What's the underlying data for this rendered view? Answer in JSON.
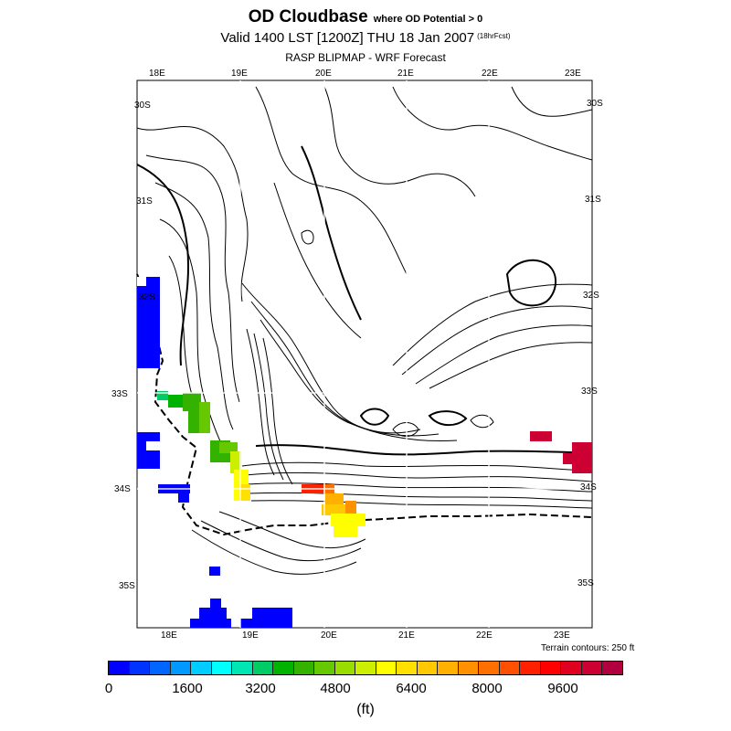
{
  "header": {
    "title": "OD Cloudbase",
    "title_note": "where OD Potential > 0",
    "subtitle": "Valid 1400 LST [1200Z] THU 18 Jan 2007",
    "subtitle_note": "(18hrFcst)",
    "source": "RASP BLIPMAP - WRF Forecast"
  },
  "map": {
    "lon_labels_top": [
      "18E",
      "19E",
      "20E",
      "21E",
      "22E",
      "23E"
    ],
    "lon_labels_bottom": [
      "18E",
      "19E",
      "20E",
      "21E",
      "22E",
      "23E"
    ],
    "lat_labels_left": [
      "30S",
      "31S",
      "32S",
      "33S",
      "34S",
      "35S"
    ],
    "lat_labels_right": [
      "30S",
      "31S",
      "32S",
      "33S",
      "34S",
      "35S"
    ],
    "terrain_note": "Terrain contours: 250 ft"
  },
  "colorbar": {
    "labels": [
      "0",
      "1600",
      "3200",
      "4800",
      "6400",
      "8000",
      "9600"
    ],
    "unit": "(ft)",
    "colors": [
      "#0000ff",
      "#0033ff",
      "#0066ff",
      "#0099ff",
      "#00ccff",
      "#00ffff",
      "#00e6b3",
      "#00cc66",
      "#00b300",
      "#33b300",
      "#66c800",
      "#99dd00",
      "#ccee00",
      "#ffff00",
      "#ffe000",
      "#ffc800",
      "#ffb000",
      "#ff9000",
      "#ff7000",
      "#ff5000",
      "#ff2000",
      "#ff0000",
      "#e00020",
      "#cc0033",
      "#b00040"
    ]
  }
}
